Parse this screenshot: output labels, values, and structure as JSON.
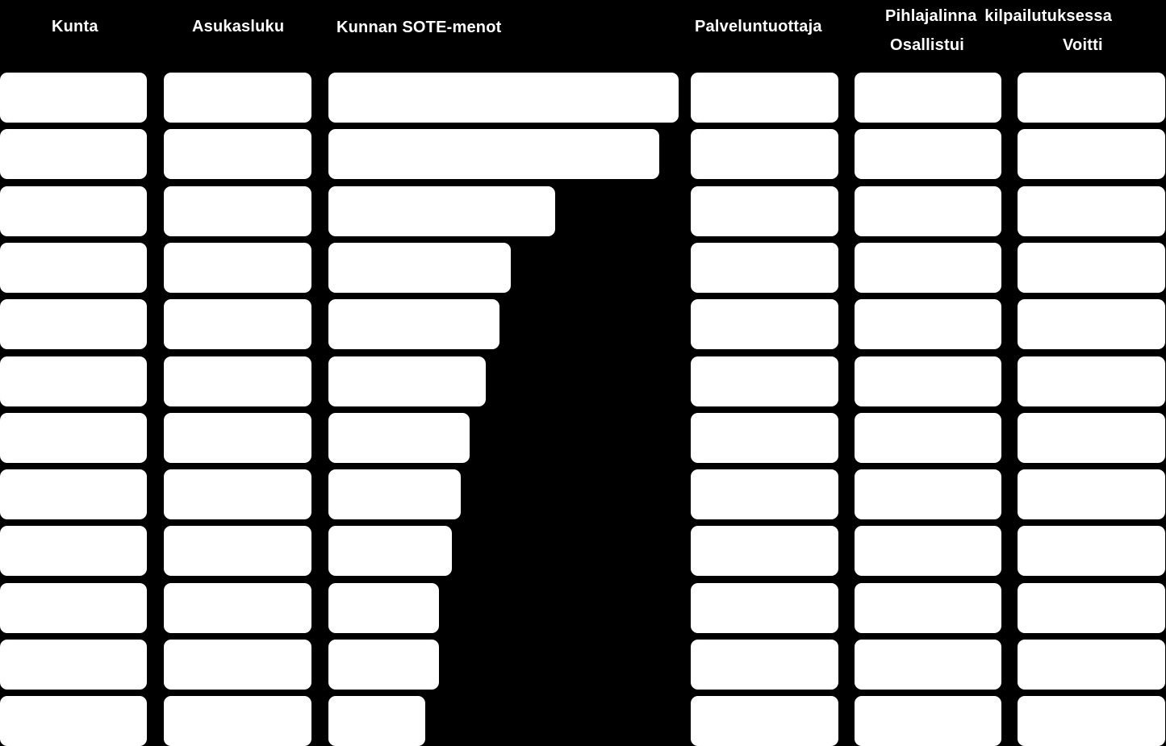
{
  "headers": {
    "kunta": "Kunta",
    "asukasluku": "Asukasluku",
    "sote": "Kunnan SOTE-menot",
    "palveluntuottaja": "Palveluntuottaja",
    "pihlajalinna": "Pihlajalinna  kilpailutuksessa",
    "osallistui": "Osallistui",
    "voitti": "Voitti"
  },
  "colors": {
    "background": "#000000",
    "cell": "#ffffff",
    "text": "#ffffff"
  },
  "chart_data": {
    "type": "bar",
    "orientation": "horizontal",
    "title": "",
    "xlabel": "",
    "ylabel": "",
    "rows": 12,
    "categories": [
      "",
      "",
      "",
      "",
      "",
      "",
      "",
      "",
      "",
      "",
      "",
      ""
    ],
    "series": [
      {
        "name": "Kunnan SOTE-menot",
        "values": [
          1.0,
          0.945,
          0.648,
          0.521,
          0.488,
          0.449,
          0.403,
          0.378,
          0.353,
          0.316,
          0.316,
          0.276
        ]
      }
    ],
    "value_scale": "relative (fraction of the longest bar)",
    "grid": false,
    "legend": "none"
  }
}
